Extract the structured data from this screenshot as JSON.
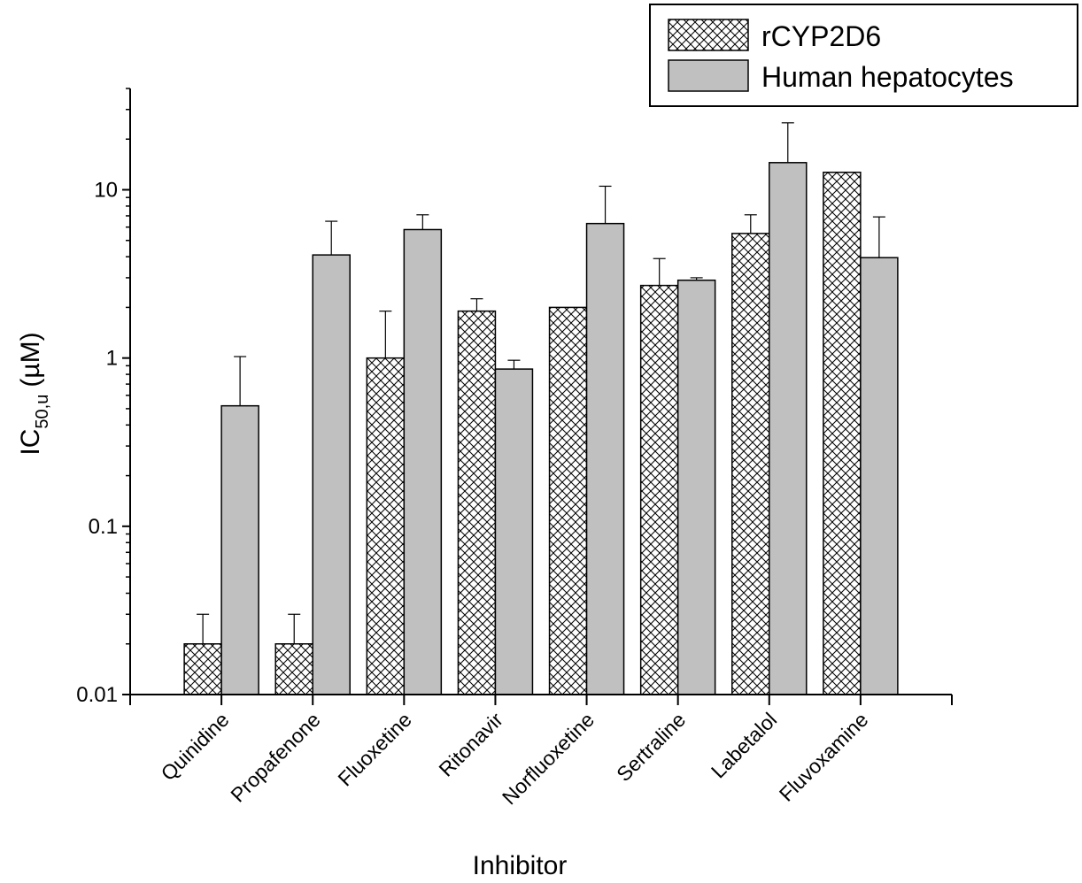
{
  "chart_data": {
    "type": "bar",
    "xlabel": "Inhibitor",
    "ylabel_main": "IC",
    "ylabel_sub": "50,u",
    "ylabel_unit": "(µM)",
    "yscale": "log",
    "ylim": [
      0.01,
      40
    ],
    "yticks": [
      0.01,
      0.1,
      1,
      10
    ],
    "ytick_labels": [
      "0.01",
      "0.1",
      "1",
      "10"
    ],
    "legend_position": "top-right",
    "categories": [
      "Quinidine",
      "Propafenone",
      "Fluoxetine",
      "Ritonavir",
      "Norfluoxetine",
      "Sertraline",
      "Labetalol",
      "Fluvoxamine"
    ],
    "series": [
      {
        "name": "rCYP2D6",
        "pattern": "crosshatch",
        "color": "#ffffff",
        "values": [
          0.02,
          0.02,
          1.0,
          1.9,
          2.0,
          2.7,
          5.5,
          12.7
        ],
        "errors_upper": [
          0.03,
          0.03,
          1.9,
          2.25,
          null,
          3.9,
          7.1,
          null
        ]
      },
      {
        "name": "Human hepatocytes",
        "pattern": "solid",
        "color": "#c0c0c0",
        "values": [
          0.52,
          4.1,
          5.8,
          0.86,
          6.3,
          2.9,
          14.5,
          3.95
        ],
        "errors_upper": [
          1.02,
          6.5,
          7.1,
          0.97,
          10.5,
          3.0,
          25.0,
          6.9
        ]
      }
    ]
  }
}
